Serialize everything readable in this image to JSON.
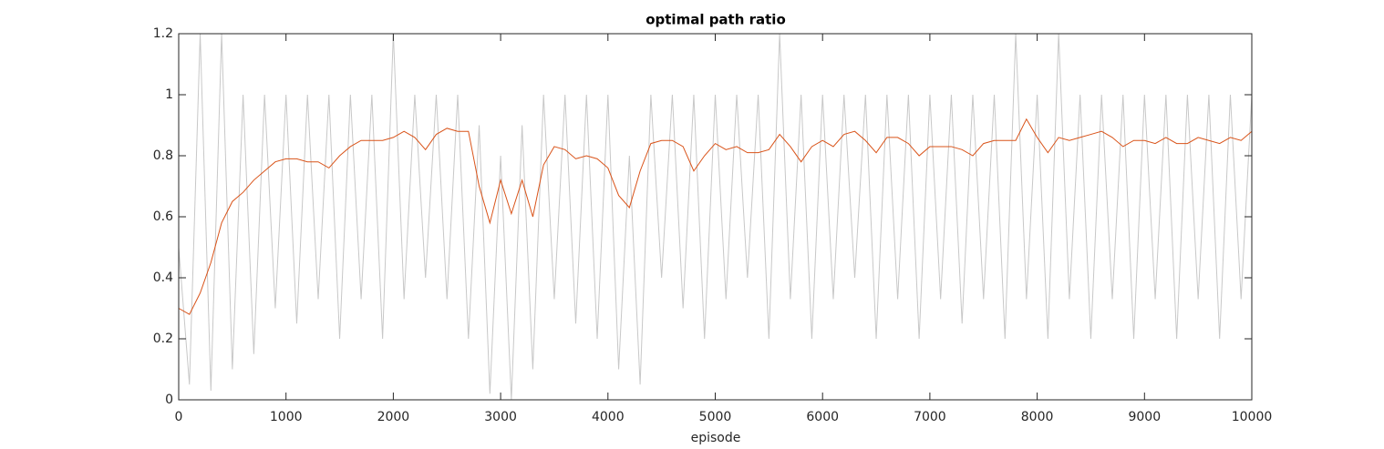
{
  "chart_data": {
    "type": "line",
    "title": "optimal path ratio",
    "xlabel": "episode",
    "x": [
      0,
      100,
      200,
      300,
      400,
      500,
      600,
      700,
      800,
      900,
      1000,
      1100,
      1200,
      1300,
      1400,
      1500,
      1600,
      1700,
      1800,
      1900,
      2000,
      2100,
      2200,
      2300,
      2400,
      2500,
      2600,
      2700,
      2800,
      2900,
      3000,
      3100,
      3200,
      3300,
      3400,
      3500,
      3600,
      3700,
      3800,
      3900,
      4000,
      4100,
      4200,
      4300,
      4400,
      4500,
      4600,
      4700,
      4800,
      4900,
      5000,
      5100,
      5200,
      5300,
      5400,
      5500,
      5600,
      5700,
      5800,
      5900,
      6000,
      6100,
      6200,
      6300,
      6400,
      6500,
      6600,
      6700,
      6800,
      6900,
      7000,
      7100,
      7200,
      7300,
      7400,
      7500,
      7600,
      7700,
      7800,
      7900,
      8000,
      8100,
      8200,
      8300,
      8400,
      8500,
      8600,
      8700,
      8800,
      8900,
      9000,
      9100,
      9200,
      9300,
      9400,
      9500,
      9600,
      9700,
      9800,
      9900,
      10000
    ],
    "series": [
      {
        "color": "#c8c8c8",
        "values": [
          0.5,
          0.05,
          1.2,
          0.03,
          1.2,
          0.1,
          1,
          0.15,
          1,
          0.3,
          1,
          0.25,
          1,
          0.33,
          1,
          0.2,
          1,
          0.33,
          1,
          0.2,
          1.2,
          0.33,
          1,
          0.4,
          1,
          0.33,
          1,
          0.2,
          0.9,
          0.02,
          0.8,
          0,
          0.9,
          0.1,
          1,
          0.33,
          1,
          0.25,
          1,
          0.2,
          1,
          0.1,
          0.8,
          0.05,
          1,
          0.4,
          1,
          0.3,
          1,
          0.2,
          1,
          0.33,
          1,
          0.4,
          1,
          0.2,
          1.2,
          0.33,
          1,
          0.2,
          1,
          0.33,
          1,
          0.4,
          1,
          0.2,
          1,
          0.33,
          1,
          0.2,
          1,
          0.33,
          1,
          0.25,
          1,
          0.33,
          1,
          0.2,
          1.2,
          0.33,
          1,
          0.2,
          1.2,
          0.33,
          1,
          0.2,
          1,
          0.33,
          1,
          0.2,
          1,
          0.33,
          1,
          0.2,
          1,
          0.33,
          1,
          0.2,
          1,
          0.33,
          1
        ]
      },
      {
        "color": "#d95319",
        "values": [
          0.3,
          0.28,
          0.35,
          0.45,
          0.58,
          0.65,
          0.68,
          0.72,
          0.75,
          0.78,
          0.79,
          0.79,
          0.78,
          0.78,
          0.76,
          0.8,
          0.83,
          0.85,
          0.85,
          0.85,
          0.86,
          0.88,
          0.86,
          0.82,
          0.87,
          0.89,
          0.88,
          0.88,
          0.7,
          0.58,
          0.72,
          0.61,
          0.72,
          0.6,
          0.77,
          0.83,
          0.82,
          0.79,
          0.8,
          0.79,
          0.76,
          0.67,
          0.63,
          0.75,
          0.84,
          0.85,
          0.85,
          0.83,
          0.75,
          0.8,
          0.84,
          0.82,
          0.83,
          0.81,
          0.81,
          0.82,
          0.87,
          0.83,
          0.78,
          0.83,
          0.85,
          0.83,
          0.87,
          0.88,
          0.85,
          0.81,
          0.86,
          0.86,
          0.84,
          0.8,
          0.83,
          0.83,
          0.83,
          0.82,
          0.8,
          0.84,
          0.85,
          0.85,
          0.85,
          0.92,
          0.86,
          0.81,
          0.86,
          0.85,
          0.86,
          0.87,
          0.88,
          0.86,
          0.83,
          0.85,
          0.85,
          0.84,
          0.86,
          0.84,
          0.84,
          0.86,
          0.85,
          0.84,
          0.86,
          0.85,
          0.88
        ]
      }
    ],
    "xlim": [
      0,
      10000
    ],
    "xticks": [
      0,
      1000,
      2000,
      3000,
      4000,
      5000,
      6000,
      7000,
      8000,
      9000,
      10000
    ],
    "ylim": [
      0,
      1.2
    ],
    "yticks": [
      0,
      0.2,
      0.4,
      0.6,
      0.8,
      1,
      1.2
    ],
    "grid": false
  }
}
